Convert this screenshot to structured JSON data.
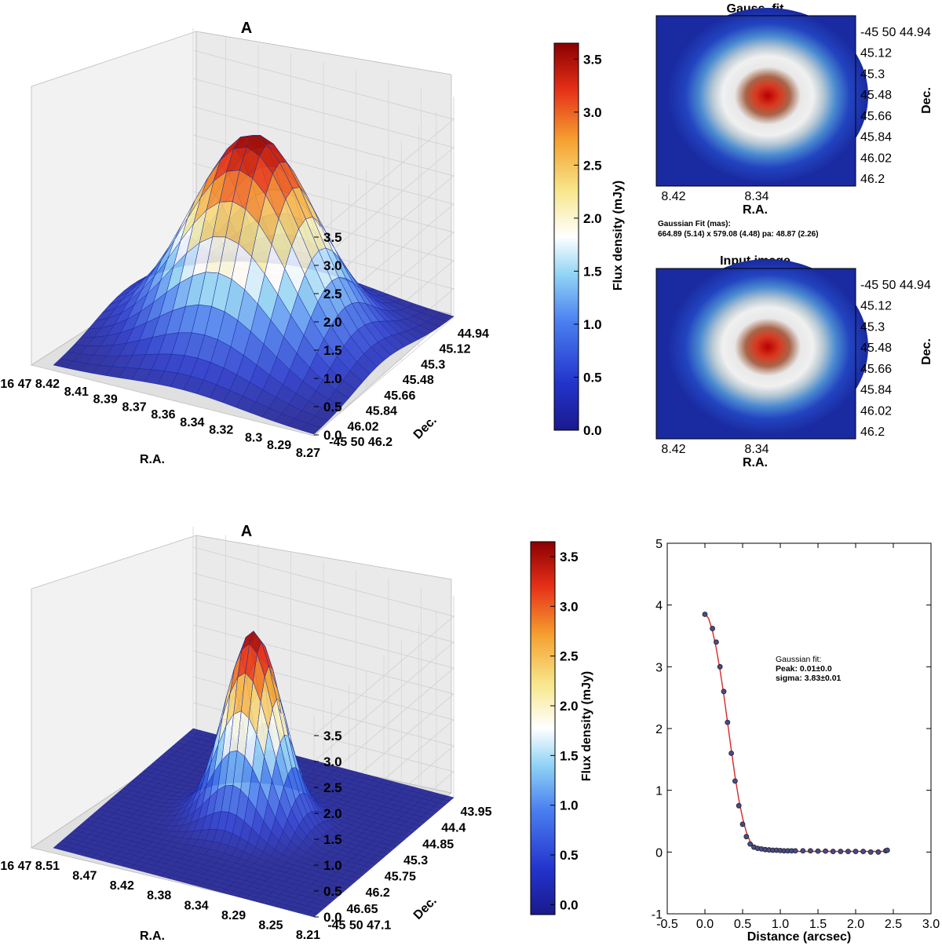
{
  "colors": {
    "low": "#1a1a8c",
    "mid": "#ffffff",
    "high": "#8b0000",
    "fit_line": "#d62728",
    "points": "#2b2b6b"
  },
  "chart_data": [
    {
      "id": "surface_top",
      "type": "surface3d",
      "title": "A",
      "xlabel": "R.A.",
      "ylabel": "Dec.",
      "zticks": [
        "0.0",
        "0.5",
        "1.0",
        "1.5",
        "2.0",
        "2.5",
        "3.0",
        "3.5"
      ],
      "zlim": [
        0,
        3.9
      ],
      "peak": 3.65,
      "sigma_grid": 0.22,
      "ra_ticks": [
        "16 47 8.42",
        "8.41",
        "8.39",
        "8.37",
        "8.36",
        "8.34",
        "8.32",
        "8.3",
        "8.29",
        "8.27"
      ],
      "dec_ticks": [
        "44.94",
        "45.12",
        "45.3",
        "45.48",
        "45.66",
        "45.84",
        "46.02",
        "-45 50 46.2"
      ]
    },
    {
      "id": "colorbar_top",
      "type": "colorbar",
      "label": "Flux density (mJy)",
      "ticks": [
        "0.0",
        "0.5",
        "1.0",
        "1.5",
        "2.0",
        "2.5",
        "3.0",
        "3.5"
      ],
      "range": [
        0,
        3.65
      ]
    },
    {
      "id": "gauss_fit_image",
      "type": "heatmap",
      "title": "Gauss. fit",
      "xlabel": "R.A.",
      "ylabel": "Dec.",
      "xticks": [
        "8.42",
        "8.34"
      ],
      "yticks": [
        "-45 50 44.94",
        "45.12",
        "45.3",
        "45.48",
        "45.66",
        "45.84",
        "46.02",
        "46.2"
      ],
      "fit_caption": "Gaussian Fit (mas):",
      "fit_values": "664.89 (5.14) x 579.08 (4.48) pa: 48.87 (2.26)"
    },
    {
      "id": "input_image",
      "type": "heatmap",
      "title": "Input image",
      "xlabel": "R.A.",
      "ylabel": "Dec.",
      "xticks": [
        "8.42",
        "8.34"
      ],
      "yticks": [
        "-45 50 44.94",
        "45.12",
        "45.3",
        "45.48",
        "45.66",
        "45.84",
        "46.02",
        "46.2"
      ]
    },
    {
      "id": "surface_bottom",
      "type": "surface3d",
      "title": "A",
      "xlabel": "R.A.",
      "ylabel": "Dec.",
      "zticks": [
        "0.0",
        "0.5",
        "1.0",
        "1.5",
        "2.0",
        "2.5",
        "3.0",
        "3.5"
      ],
      "zlim": [
        0,
        3.9
      ],
      "peak": 3.7,
      "sigma_grid": 0.1,
      "ra_ticks": [
        "16 47 8.51",
        "8.47",
        "8.42",
        "8.38",
        "8.34",
        "8.29",
        "8.25",
        "8.21"
      ],
      "dec_ticks": [
        "43.95",
        "44.4",
        "44.85",
        "45.3",
        "45.75",
        "46.2",
        "46.65",
        "-45 50 47.1"
      ]
    },
    {
      "id": "colorbar_bottom",
      "type": "colorbar",
      "label": "Flux density (mJy)",
      "ticks": [
        "0.0",
        "0.5",
        "1.0",
        "1.5",
        "2.0",
        "2.5",
        "3.0",
        "3.5"
      ],
      "range": [
        -0.1,
        3.65
      ]
    },
    {
      "id": "radial_profile",
      "type": "scatter",
      "xlabel": "Distance (arcsec)",
      "ylabel": "",
      "xlim": [
        -0.5,
        3.0
      ],
      "ylim": [
        -1,
        5
      ],
      "xticks": [
        "-0.5",
        "0.0",
        "0.5",
        "1.0",
        "1.5",
        "2.0",
        "2.5",
        "3.0"
      ],
      "yticks": [
        "-1",
        "0",
        "1",
        "2",
        "3",
        "4",
        "5"
      ],
      "annotation": [
        "Gaussian fit:",
        "Peak: 0.01±0.0",
        "sigma: 3.83±0.01"
      ],
      "points": [
        [
          0.0,
          3.85
        ],
        [
          0.1,
          3.62
        ],
        [
          0.15,
          3.4
        ],
        [
          0.2,
          3.0
        ],
        [
          0.25,
          2.6
        ],
        [
          0.3,
          2.1
        ],
        [
          0.35,
          1.6
        ],
        [
          0.4,
          1.15
        ],
        [
          0.45,
          0.75
        ],
        [
          0.5,
          0.45
        ],
        [
          0.55,
          0.25
        ],
        [
          0.6,
          0.13
        ],
        [
          0.65,
          0.08
        ],
        [
          0.7,
          0.06
        ],
        [
          0.75,
          0.05
        ],
        [
          0.8,
          0.04
        ],
        [
          0.85,
          0.035
        ],
        [
          0.9,
          0.03
        ],
        [
          0.95,
          0.03
        ],
        [
          1.0,
          0.025
        ],
        [
          1.05,
          0.02
        ],
        [
          1.1,
          0.02
        ],
        [
          1.15,
          0.02
        ],
        [
          1.2,
          0.02
        ],
        [
          1.3,
          0.02
        ],
        [
          1.4,
          0.02
        ],
        [
          1.5,
          0.015
        ],
        [
          1.6,
          0.015
        ],
        [
          1.7,
          0.01
        ],
        [
          1.8,
          0.01
        ],
        [
          1.9,
          0.01
        ],
        [
          2.0,
          0.01
        ],
        [
          2.1,
          0.01
        ],
        [
          2.2,
          0.0
        ],
        [
          2.3,
          0.0
        ],
        [
          2.4,
          0.02
        ],
        [
          2.42,
          0.03
        ]
      ],
      "fit_curve": [
        [
          0.0,
          3.86
        ],
        [
          0.05,
          3.78
        ],
        [
          0.1,
          3.58
        ],
        [
          0.15,
          3.3
        ],
        [
          0.2,
          2.95
        ],
        [
          0.25,
          2.55
        ],
        [
          0.3,
          2.1
        ],
        [
          0.35,
          1.65
        ],
        [
          0.4,
          1.22
        ],
        [
          0.45,
          0.85
        ],
        [
          0.5,
          0.55
        ],
        [
          0.55,
          0.32
        ],
        [
          0.6,
          0.17
        ],
        [
          0.65,
          0.09
        ],
        [
          0.7,
          0.05
        ],
        [
          0.8,
          0.02
        ],
        [
          1.0,
          0.01
        ],
        [
          1.5,
          0.01
        ],
        [
          2.0,
          0.01
        ],
        [
          2.42,
          0.01
        ]
      ]
    }
  ]
}
